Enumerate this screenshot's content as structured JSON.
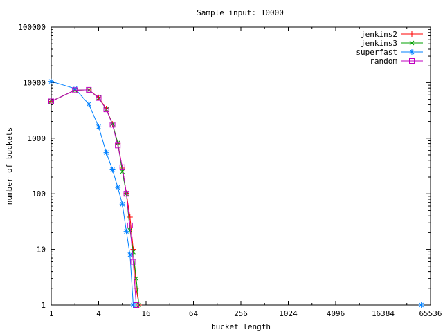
{
  "chart_data": {
    "type": "line",
    "title": "Sample input: 10000",
    "xlabel": "bucket length",
    "ylabel": "number of buckets",
    "x_scale": "log2",
    "y_scale": "log10",
    "xlim": [
      1,
      65536
    ],
    "ylim": [
      1,
      100000
    ],
    "x_ticks": [
      {
        "value": 1,
        "label": "1"
      },
      {
        "value": 4,
        "label": "4"
      },
      {
        "value": 16,
        "label": "16"
      },
      {
        "value": 64,
        "label": "64"
      },
      {
        "value": 256,
        "label": "256"
      },
      {
        "value": 1024,
        "label": "1024"
      },
      {
        "value": 4096,
        "label": "4096"
      },
      {
        "value": 16384,
        "label": "16384"
      },
      {
        "value": 65536,
        "label": "65536"
      }
    ],
    "y_ticks": [
      {
        "value": 1,
        "label": "1"
      },
      {
        "value": 10,
        "label": "10"
      },
      {
        "value": 100,
        "label": "100"
      },
      {
        "value": 1000,
        "label": "1000"
      },
      {
        "value": 10000,
        "label": "10000"
      },
      {
        "value": 100000,
        "label": "100000"
      }
    ],
    "grid": false,
    "legend_position": "top-right",
    "series": [
      {
        "name": "jenkins2",
        "color": "#ff0000",
        "marker": "plus",
        "points": [
          [
            1,
            4600
          ],
          [
            2,
            7300
          ],
          [
            3,
            7400
          ],
          [
            4,
            5400
          ],
          [
            5,
            3400
          ],
          [
            6,
            1800
          ],
          [
            7,
            800
          ],
          [
            8,
            290
          ],
          [
            9,
            102
          ],
          [
            10,
            38
          ],
          [
            11,
            10
          ],
          [
            12,
            2
          ],
          [
            13,
            1
          ]
        ]
      },
      {
        "name": "jenkins3",
        "color": "#00a000",
        "marker": "cross",
        "points": [
          [
            1,
            4600
          ],
          [
            2,
            7300
          ],
          [
            3,
            7400
          ],
          [
            4,
            5300
          ],
          [
            5,
            3300
          ],
          [
            6,
            1800
          ],
          [
            7,
            820
          ],
          [
            8,
            250
          ],
          [
            9,
            100
          ],
          [
            10,
            22
          ],
          [
            11,
            9
          ],
          [
            12,
            3
          ],
          [
            13,
            1
          ]
        ]
      },
      {
        "name": "superfast",
        "color": "#0080ff",
        "marker": "star",
        "points": [
          [
            1,
            10500
          ],
          [
            2,
            7800
          ],
          [
            3,
            4100
          ],
          [
            4,
            1600
          ],
          [
            5,
            550
          ],
          [
            6,
            270
          ],
          [
            7,
            130
          ],
          [
            8,
            65
          ],
          [
            9,
            21
          ],
          [
            10,
            8
          ],
          [
            11,
            1
          ]
        ],
        "outliers": [
          [
            50000,
            1
          ]
        ]
      },
      {
        "name": "random",
        "color": "#c000c0",
        "marker": "square",
        "points": [
          [
            1,
            4600
          ],
          [
            2,
            7300
          ],
          [
            3,
            7400
          ],
          [
            4,
            5300
          ],
          [
            5,
            3300
          ],
          [
            6,
            1750
          ],
          [
            7,
            740
          ],
          [
            8,
            300
          ],
          [
            9,
            100
          ],
          [
            10,
            27
          ],
          [
            11,
            6
          ],
          [
            12,
            1
          ]
        ]
      }
    ]
  }
}
